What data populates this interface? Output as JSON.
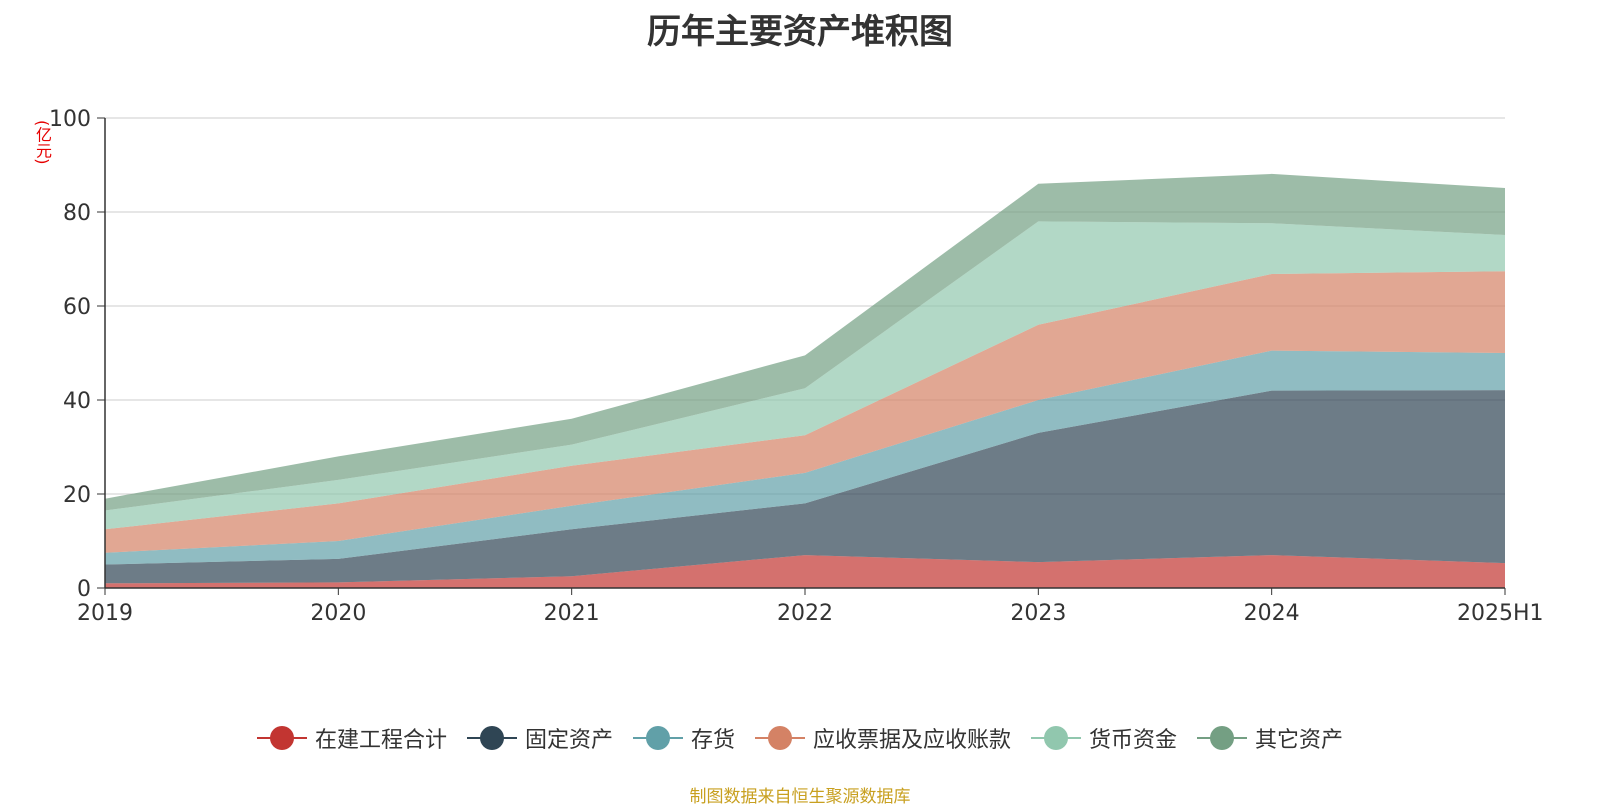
{
  "chart_data": {
    "type": "area",
    "stacked": true,
    "title": "历年主要资产堆积图",
    "y_unit": "(亿元)",
    "categories": [
      "2019",
      "2020",
      "2021",
      "2022",
      "2023",
      "2024",
      "2025H1"
    ],
    "ylim": [
      0,
      100
    ],
    "yticks": [
      0,
      20,
      40,
      60,
      80,
      100
    ],
    "grid": true,
    "legend_position": "bottom",
    "series": [
      {
        "name": "在建工程合计",
        "color": "#c23531",
        "values": [
          1.0,
          1.2,
          2.5,
          7.0,
          5.5,
          7.0,
          5.3
        ]
      },
      {
        "name": "固定资产",
        "color": "#2f4554",
        "values": [
          4.0,
          5.0,
          10.0,
          11.0,
          27.5,
          35.0,
          36.8
        ]
      },
      {
        "name": "存货",
        "color": "#61a0a8",
        "values": [
          2.5,
          3.8,
          5.0,
          6.5,
          7.0,
          8.5,
          7.9
        ]
      },
      {
        "name": "应收票据及应收账款",
        "color": "#d48265",
        "values": [
          5.0,
          8.0,
          8.5,
          8.0,
          16.0,
          16.3,
          17.4
        ]
      },
      {
        "name": "货币资金",
        "color": "#91c7ae",
        "values": [
          4.0,
          5.0,
          4.5,
          10.0,
          22.0,
          10.8,
          7.7
        ]
      },
      {
        "name": "其它资产",
        "color": "#749f83",
        "values": [
          2.5,
          5.0,
          5.5,
          7.0,
          8.0,
          10.5,
          10.0
        ]
      }
    ]
  },
  "source_note": "制图数据来自恒生聚源数据库"
}
